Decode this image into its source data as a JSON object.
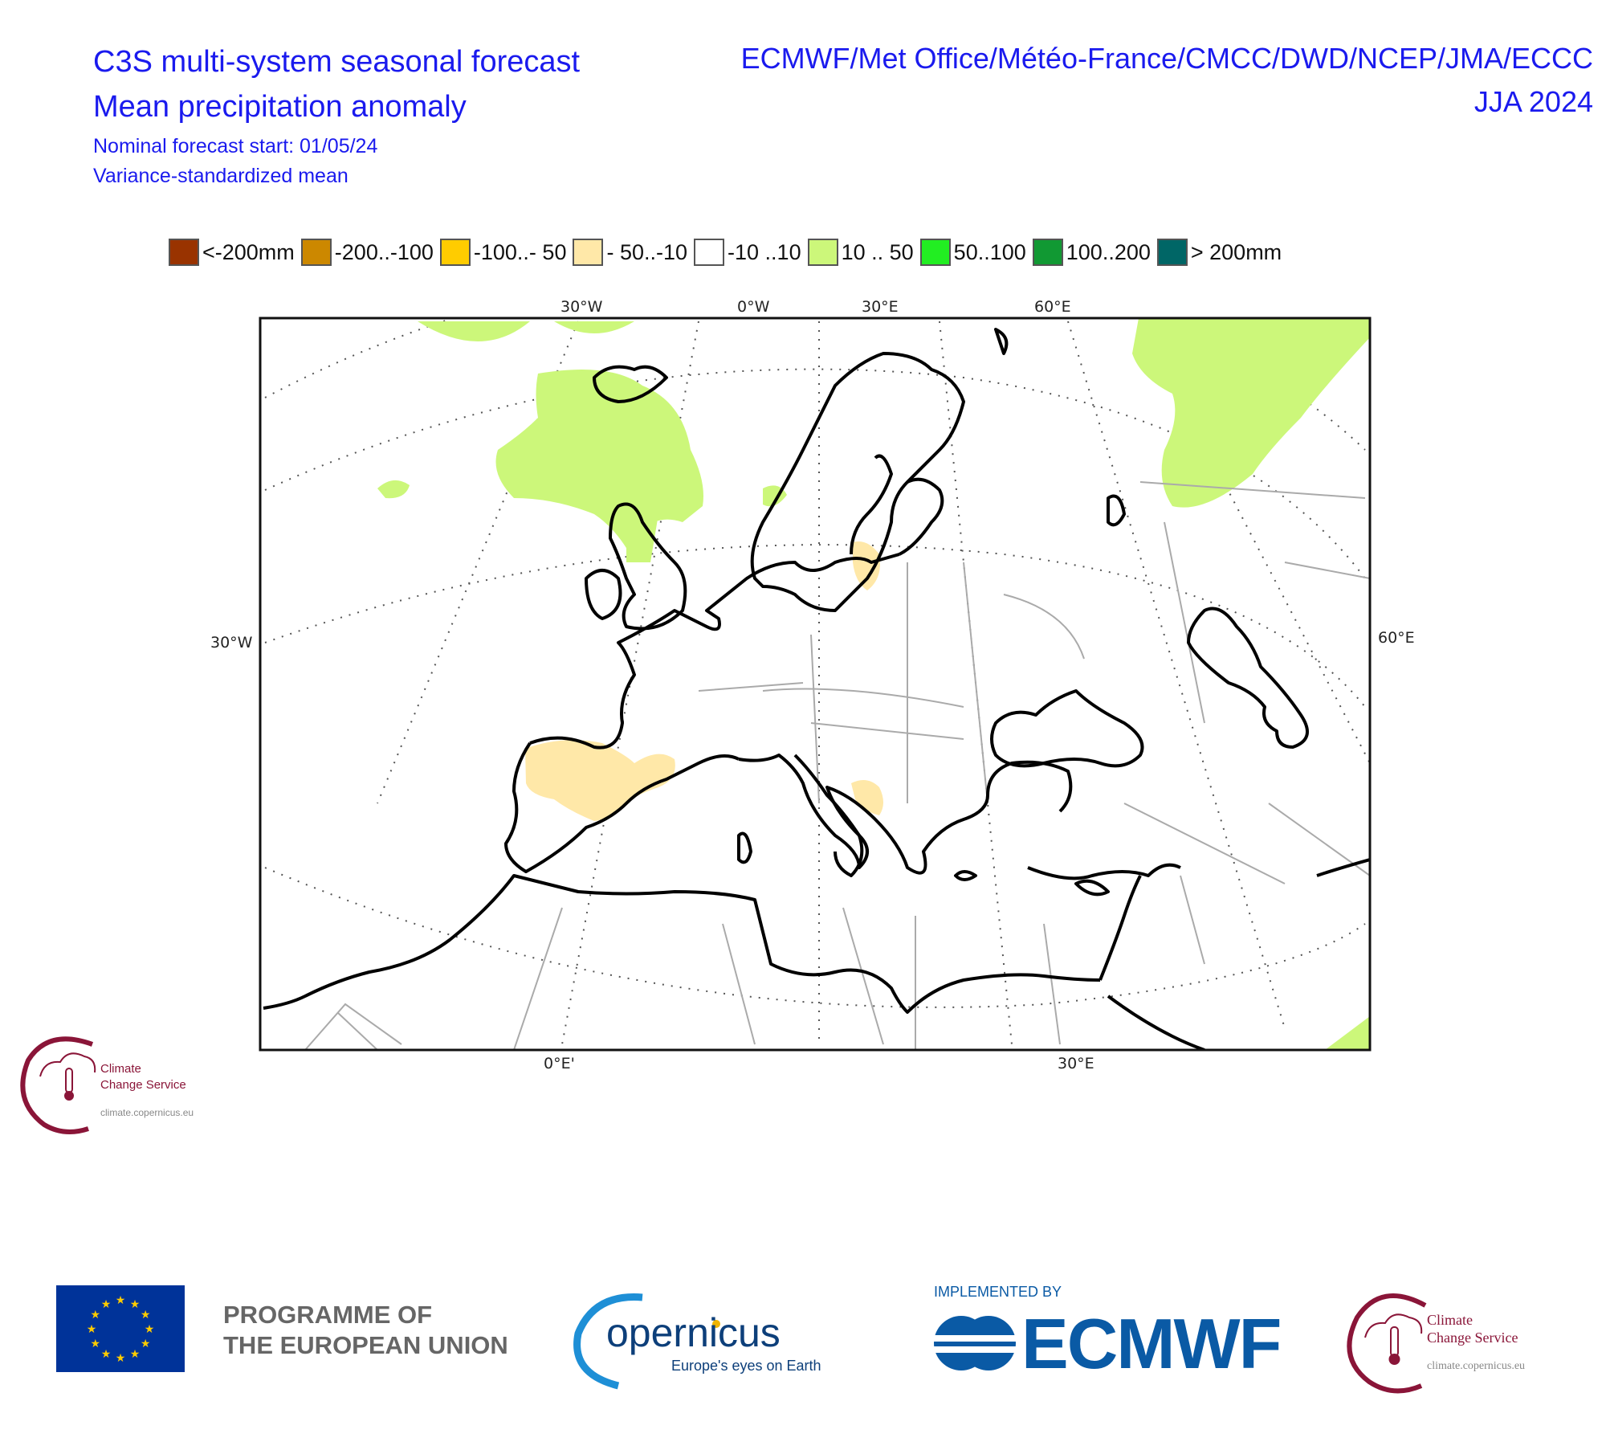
{
  "header": {
    "title_line1": "C3S multi-system seasonal forecast",
    "title_line2": "Mean precipitation anomaly",
    "subtitle_line1": "Nominal forecast start: 01/05/24",
    "subtitle_line2": "Variance-standardized mean",
    "centres": "ECMWF/Met Office/Météo-France/CMCC/DWD/NCEP/JMA/ECCC",
    "season": "JJA 2024"
  },
  "legend": [
    {
      "label": "<-200mm",
      "color": "#993300"
    },
    {
      "label": "-200..-100",
      "color": "#cc8800"
    },
    {
      "label": "-100..- 50",
      "color": "#ffcc00"
    },
    {
      "label": "- 50..-10",
      "color": "#ffe8a8"
    },
    {
      "label": "-10 ..10",
      "color": "#ffffff"
    },
    {
      "label": "10 .. 50",
      "color": "#ccf77a"
    },
    {
      "label": "50..100",
      "color": "#22ee22"
    },
    {
      "label": "100..200",
      "color": "#119933"
    },
    {
      "label": "> 200mm",
      "color": "#006666"
    }
  ],
  "map": {
    "top_labels": [
      "30°W",
      "0°W",
      "30°E",
      "60°E"
    ],
    "bottom_labels": [
      "0°E'",
      "30°E"
    ],
    "left_label": "30°W",
    "right_label": "60°E",
    "colors": {
      "wet": "#ccf77a",
      "dry": "#ffe8a8",
      "coast": "#000000",
      "border": "#aaaaaa"
    }
  },
  "logos": {
    "ccs_line1": "Climate",
    "ccs_line2": "Change Service",
    "ccs_url": "climate.copernicus.eu",
    "eu_programme": "PROGRAMME OF",
    "eu_programme_2": "THE EUROPEAN UNION",
    "copernicus_name": "opernicus",
    "copernicus_tagline": "Europe's eyes on Earth",
    "implemented_by": "IMPLEMENTED BY",
    "ecmwf_name": "ECMWF"
  }
}
